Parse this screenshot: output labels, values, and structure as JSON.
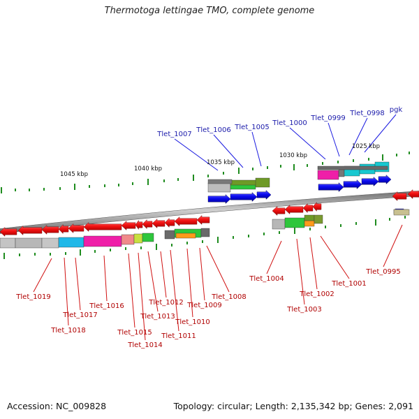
{
  "title": "Thermotoga lettingae TMO, complete genome",
  "footer": {
    "accession": "Accession: NC_009828",
    "topology": "Topology: circular; Length: 2,135,342 bp; Genes: 2,091"
  },
  "scale_labels": [
    "1045 kbp",
    "1040 kbp",
    "1035 kbp",
    "1030 kbp",
    "1025 kbp"
  ],
  "top_labels": [
    "Tlet_1007",
    "Tlet_1006",
    "Tlet_1005",
    "Tlet_1000",
    "Tlet_0999",
    "Tlet_0998",
    "pgk"
  ],
  "bottom_labels": [
    "Tlet_1019",
    "Tlet_1018",
    "Tlet_1017",
    "Tlet_1016",
    "Tlet_1015",
    "Tlet_1014",
    "Tlet_1013",
    "Tlet_1012",
    "Tlet_1011",
    "Tlet_1010",
    "Tlet_1009",
    "Tlet_1008",
    "Tlet_1004",
    "Tlet_1003",
    "Tlet_1002",
    "Tlet_1001",
    "Tlet_0995"
  ],
  "colors": {
    "forward_gene": "#0a0aee",
    "reverse_gene": "#ee0e0e",
    "top_label": "#1a1aaa",
    "bottom_label": "#b00000",
    "top_leader": "#1a1ae0",
    "bottom_leader": "#d01010",
    "tick": "#1f8c1f",
    "backbone": "#8c8c8c"
  }
}
